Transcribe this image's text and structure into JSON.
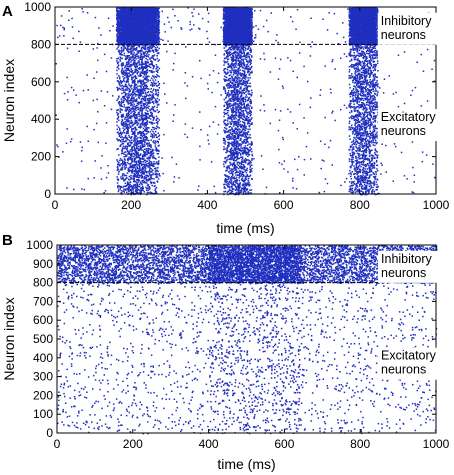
{
  "chart_data": [
    {
      "panel": "A",
      "type": "scatter",
      "xlabel": "time (ms)",
      "ylabel": "Neuron index",
      "xlim": [
        0,
        1000
      ],
      "ylim": [
        0,
        1000
      ],
      "xticks": [
        "0",
        "200",
        "400",
        "600",
        "800",
        "1000"
      ],
      "yticks": [
        "0",
        "200",
        "400",
        "600",
        "800",
        "1000"
      ],
      "x_tick_values": [
        0,
        200,
        400,
        600,
        800,
        1000
      ],
      "y_tick_values": [
        0,
        200,
        400,
        600,
        800,
        1000
      ],
      "boundary_index": 800,
      "annotations": [
        {
          "lines": [
            "Inhibitory",
            "neurons"
          ],
          "x": 855,
          "y": 905
        },
        {
          "lines": [
            "Excitatory",
            "neurons"
          ],
          "x": 855,
          "y": 390
        }
      ],
      "color": "#1f2fbf",
      "raster": {
        "background_rate": 0.0016,
        "bursts": [
          {
            "time_start": 160,
            "time_end": 270,
            "excitatory_rate": 0.11,
            "inhibitory_rate": 0.55
          },
          {
            "time_start": 440,
            "time_end": 515,
            "excitatory_rate": 0.12,
            "inhibitory_rate": 0.6
          },
          {
            "time_start": 770,
            "time_end": 845,
            "excitatory_rate": 0.11,
            "inhibitory_rate": 0.55
          }
        ]
      }
    },
    {
      "panel": "B",
      "type": "scatter",
      "xlabel": "time (ms)",
      "ylabel": "Neuron index",
      "xlim": [
        0,
        1000
      ],
      "ylim": [
        0,
        1000
      ],
      "xticks": [
        "0",
        "200",
        "400",
        "600",
        "800",
        "1000"
      ],
      "yticks": [
        "0",
        "100",
        "200",
        "300",
        "400",
        "500",
        "600",
        "700",
        "800",
        "900",
        "1000"
      ],
      "x_tick_values": [
        0,
        200,
        400,
        600,
        800,
        1000
      ],
      "y_tick_values": [
        0,
        100,
        200,
        300,
        400,
        500,
        600,
        700,
        800,
        900,
        1000
      ],
      "boundary_index": 800,
      "annotations": [
        {
          "lines": [
            "Inhibitory",
            "neurons"
          ],
          "x": 855,
          "y": 905
        },
        {
          "lines": [
            "Excitatory",
            "neurons"
          ],
          "x": 855,
          "y": 390
        }
      ],
      "color": "#1f2fbf",
      "raster": {
        "excitatory_rate": 0.007,
        "inhibitory_rate": 0.09,
        "dense_window": {
          "time_start": 400,
          "time_end": 640,
          "excitatory_rate": 0.016,
          "inhibitory_rate": 0.18
        }
      }
    }
  ]
}
